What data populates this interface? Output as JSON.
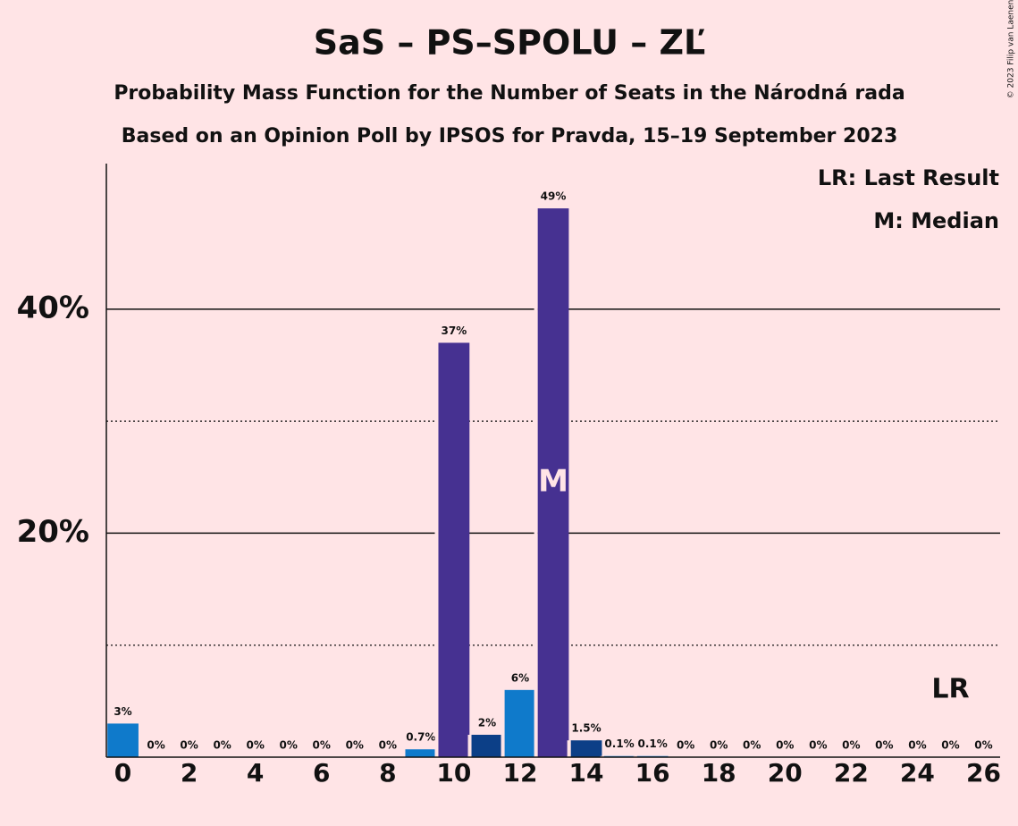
{
  "chart_data": {
    "type": "bar",
    "title": "SaS – PS–SPOLU – ZĽ",
    "subtitle": "Probability Mass Function for the Number of Seats in the Národná rada",
    "subtitle2": "Based on an Opinion Poll by IPSOS for Pravda, 15–19 September 2023",
    "copyright": "© 2023 Filip van Laenen",
    "legend": [
      "LR: Last Result",
      "M: Median"
    ],
    "x": [
      0,
      1,
      2,
      3,
      4,
      5,
      6,
      7,
      8,
      9,
      10,
      11,
      12,
      13,
      14,
      15,
      16,
      17,
      18,
      19,
      20,
      21,
      22,
      23,
      24,
      25,
      26
    ],
    "values": [
      3,
      0,
      0,
      0,
      0,
      0,
      0,
      0,
      0,
      0.7,
      37,
      2,
      6,
      49,
      1.5,
      0.1,
      0.1,
      0,
      0,
      0,
      0,
      0,
      0,
      0,
      0,
      0,
      0
    ],
    "value_labels": [
      "3%",
      "0%",
      "0%",
      "0%",
      "0%",
      "0%",
      "0%",
      "0%",
      "0%",
      "0.7%",
      "37%",
      "2%",
      "6%",
      "49%",
      "1.5%",
      "0.1%",
      "0.1%",
      "0%",
      "0%",
      "0%",
      "0%",
      "0%",
      "0%",
      "0%",
      "0%",
      "0%",
      "0%"
    ],
    "colors": [
      "#0f7acb",
      "#0f7acb",
      "#0f7acb",
      "#0f7acb",
      "#0f7acb",
      "#0f7acb",
      "#0f7acb",
      "#0f7acb",
      "#0f7acb",
      "#0f7acb",
      "#463191",
      "#0c3f87",
      "#0f7acb",
      "#463191",
      "#0c3f87",
      "#0f7acb",
      "#0f7acb",
      "#0f7acb",
      "#0f7acb",
      "#0f7acb",
      "#0f7acb",
      "#0f7acb",
      "#0f7acb",
      "#0f7acb",
      "#0f7acb",
      "#0f7acb",
      "#0f7acb"
    ],
    "xlim": [
      -0.5,
      26.5
    ],
    "xticks": [
      0,
      2,
      4,
      6,
      8,
      10,
      12,
      14,
      16,
      18,
      20,
      22,
      24,
      26
    ],
    "ylim": [
      0,
      53
    ],
    "yticks": [
      {
        "value": 20,
        "label": "20%"
      },
      {
        "value": 40,
        "label": "40%"
      }
    ],
    "minor_grid": [
      10,
      30
    ],
    "median": 13,
    "median_label": "M",
    "last_result": 25,
    "last_result_label": "LR"
  }
}
